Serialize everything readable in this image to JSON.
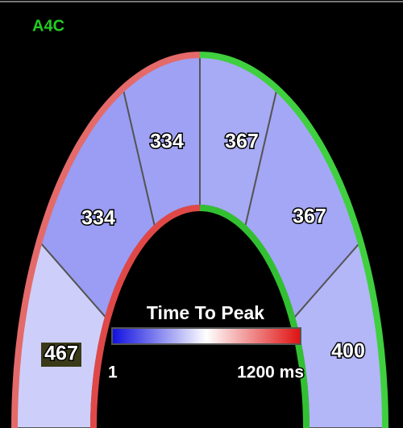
{
  "view": "A4C",
  "segments": [
    {
      "label": "467",
      "color": "#cdcffa"
    },
    {
      "label": "334",
      "color": "#9a9df3"
    },
    {
      "label": "334",
      "color": "#9fa2f4"
    },
    {
      "label": "367",
      "color": "#a7aaf5"
    },
    {
      "label": "367",
      "color": "#a4a7f5"
    },
    {
      "label": "400",
      "color": "#b3b6f7"
    }
  ],
  "legend": {
    "title": "Time To Peak",
    "min_label": "1",
    "max_label": "1200 ms"
  }
}
